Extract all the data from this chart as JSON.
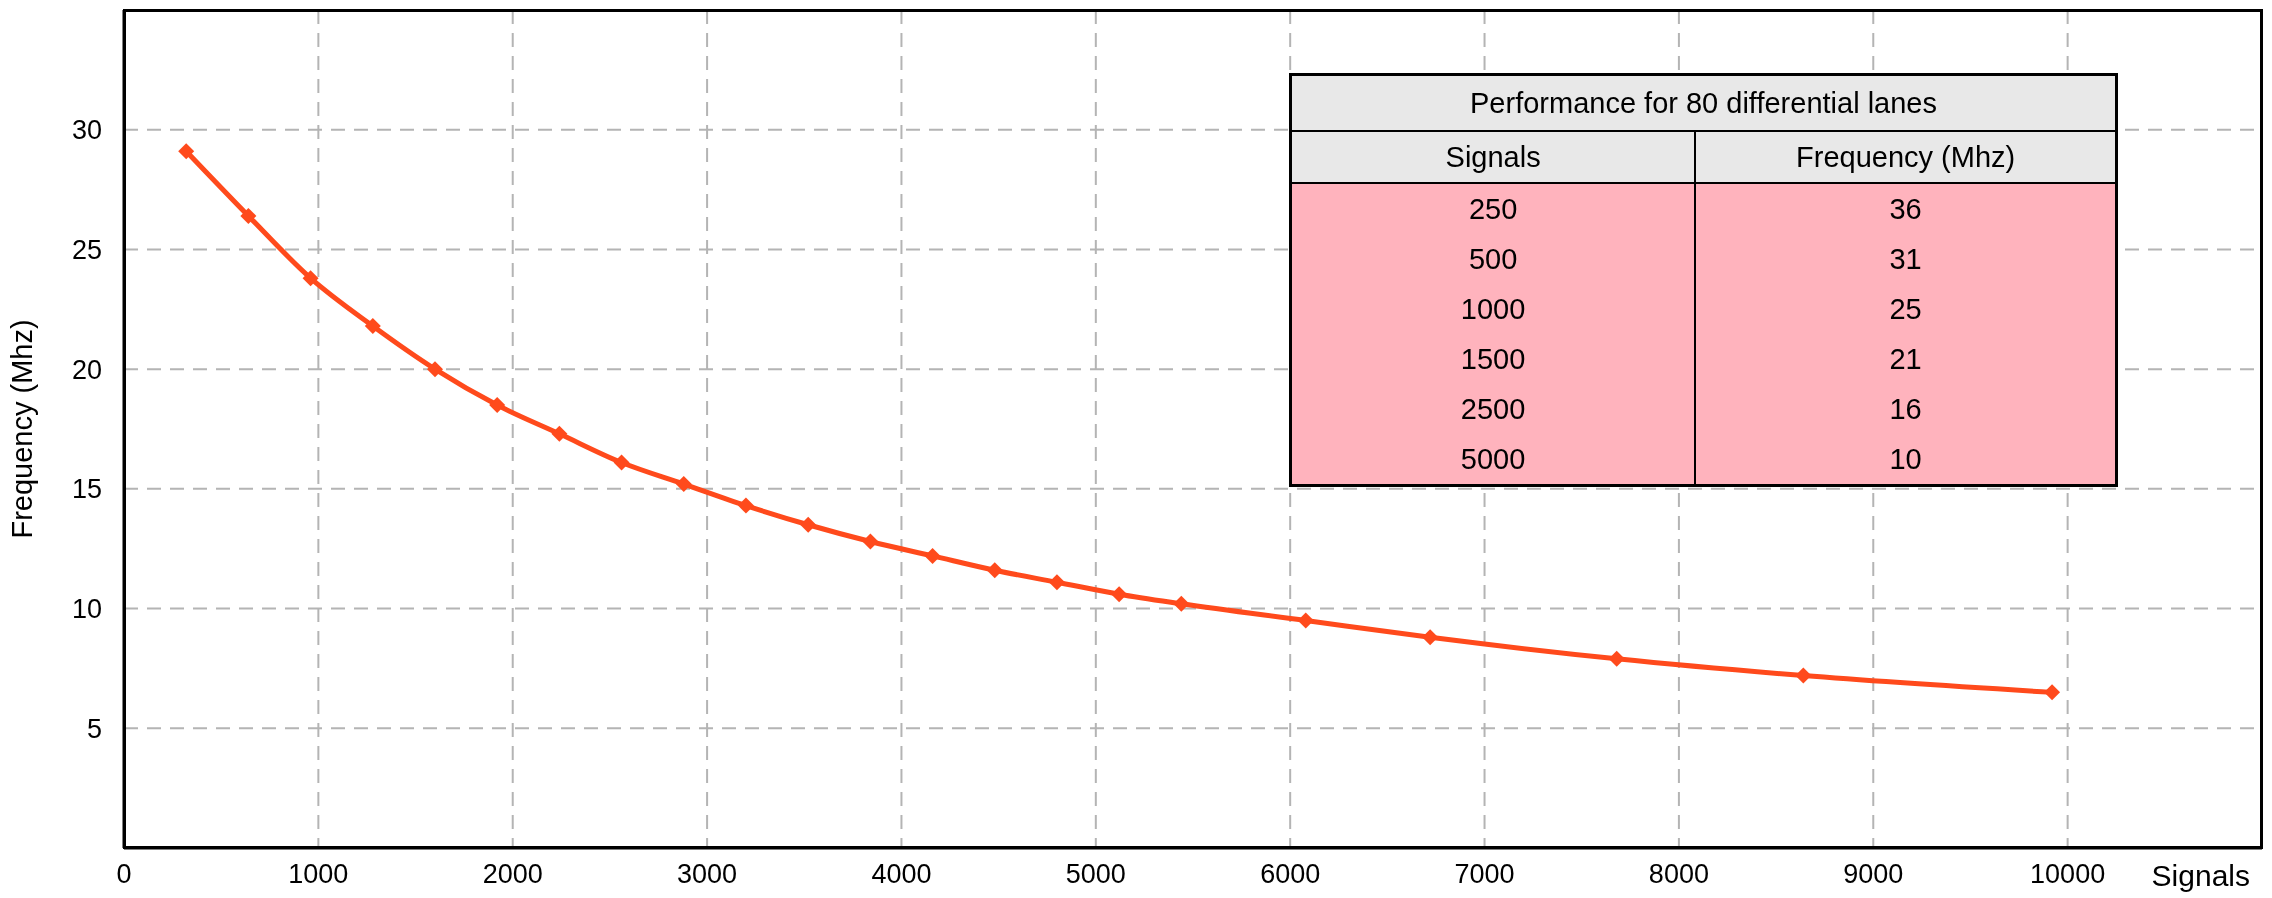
{
  "chart_data": [
    {
      "type": "line",
      "xlabel": "Signals",
      "ylabel": "Frequency (Mhz)",
      "marker": "diamond",
      "line_style": "solid",
      "grid": true,
      "x": [
        320,
        640,
        960,
        1280,
        1600,
        1920,
        2240,
        2560,
        2880,
        3200,
        3520,
        3840,
        4160,
        4480,
        4800,
        5120,
        5440,
        6080,
        6720,
        7680,
        8640,
        9920
      ],
      "series": [
        {
          "color": "#ff4a1c",
          "values": [
            29.1,
            26.4,
            23.8,
            21.8,
            20.0,
            18.5,
            17.3,
            16.1,
            15.2,
            14.3,
            13.5,
            12.8,
            12.2,
            11.6,
            11.1,
            10.6,
            10.2,
            9.5,
            8.8,
            7.9,
            7.2,
            6.5
          ]
        }
      ],
      "xlim": [
        0,
        11000
      ],
      "xticks": [
        0,
        1000,
        2000,
        3000,
        4000,
        5000,
        6000,
        7000,
        8000,
        9000,
        10000
      ],
      "ylim": [
        0,
        35
      ],
      "yticks": [
        5,
        10,
        15,
        20,
        25,
        30
      ]
    },
    {
      "type": "other",
      "title": "Performance for 80 differential lanes",
      "xlabel": "Signals",
      "ylabel": "Frequency (Mhz)",
      "categories": [
        "250",
        "500",
        "1000",
        "1500",
        "2500",
        "5000"
      ],
      "values": [
        36,
        31,
        25,
        21,
        16,
        10
      ],
      "color": "#ffb3bd",
      "data_labels": true
    }
  ]
}
